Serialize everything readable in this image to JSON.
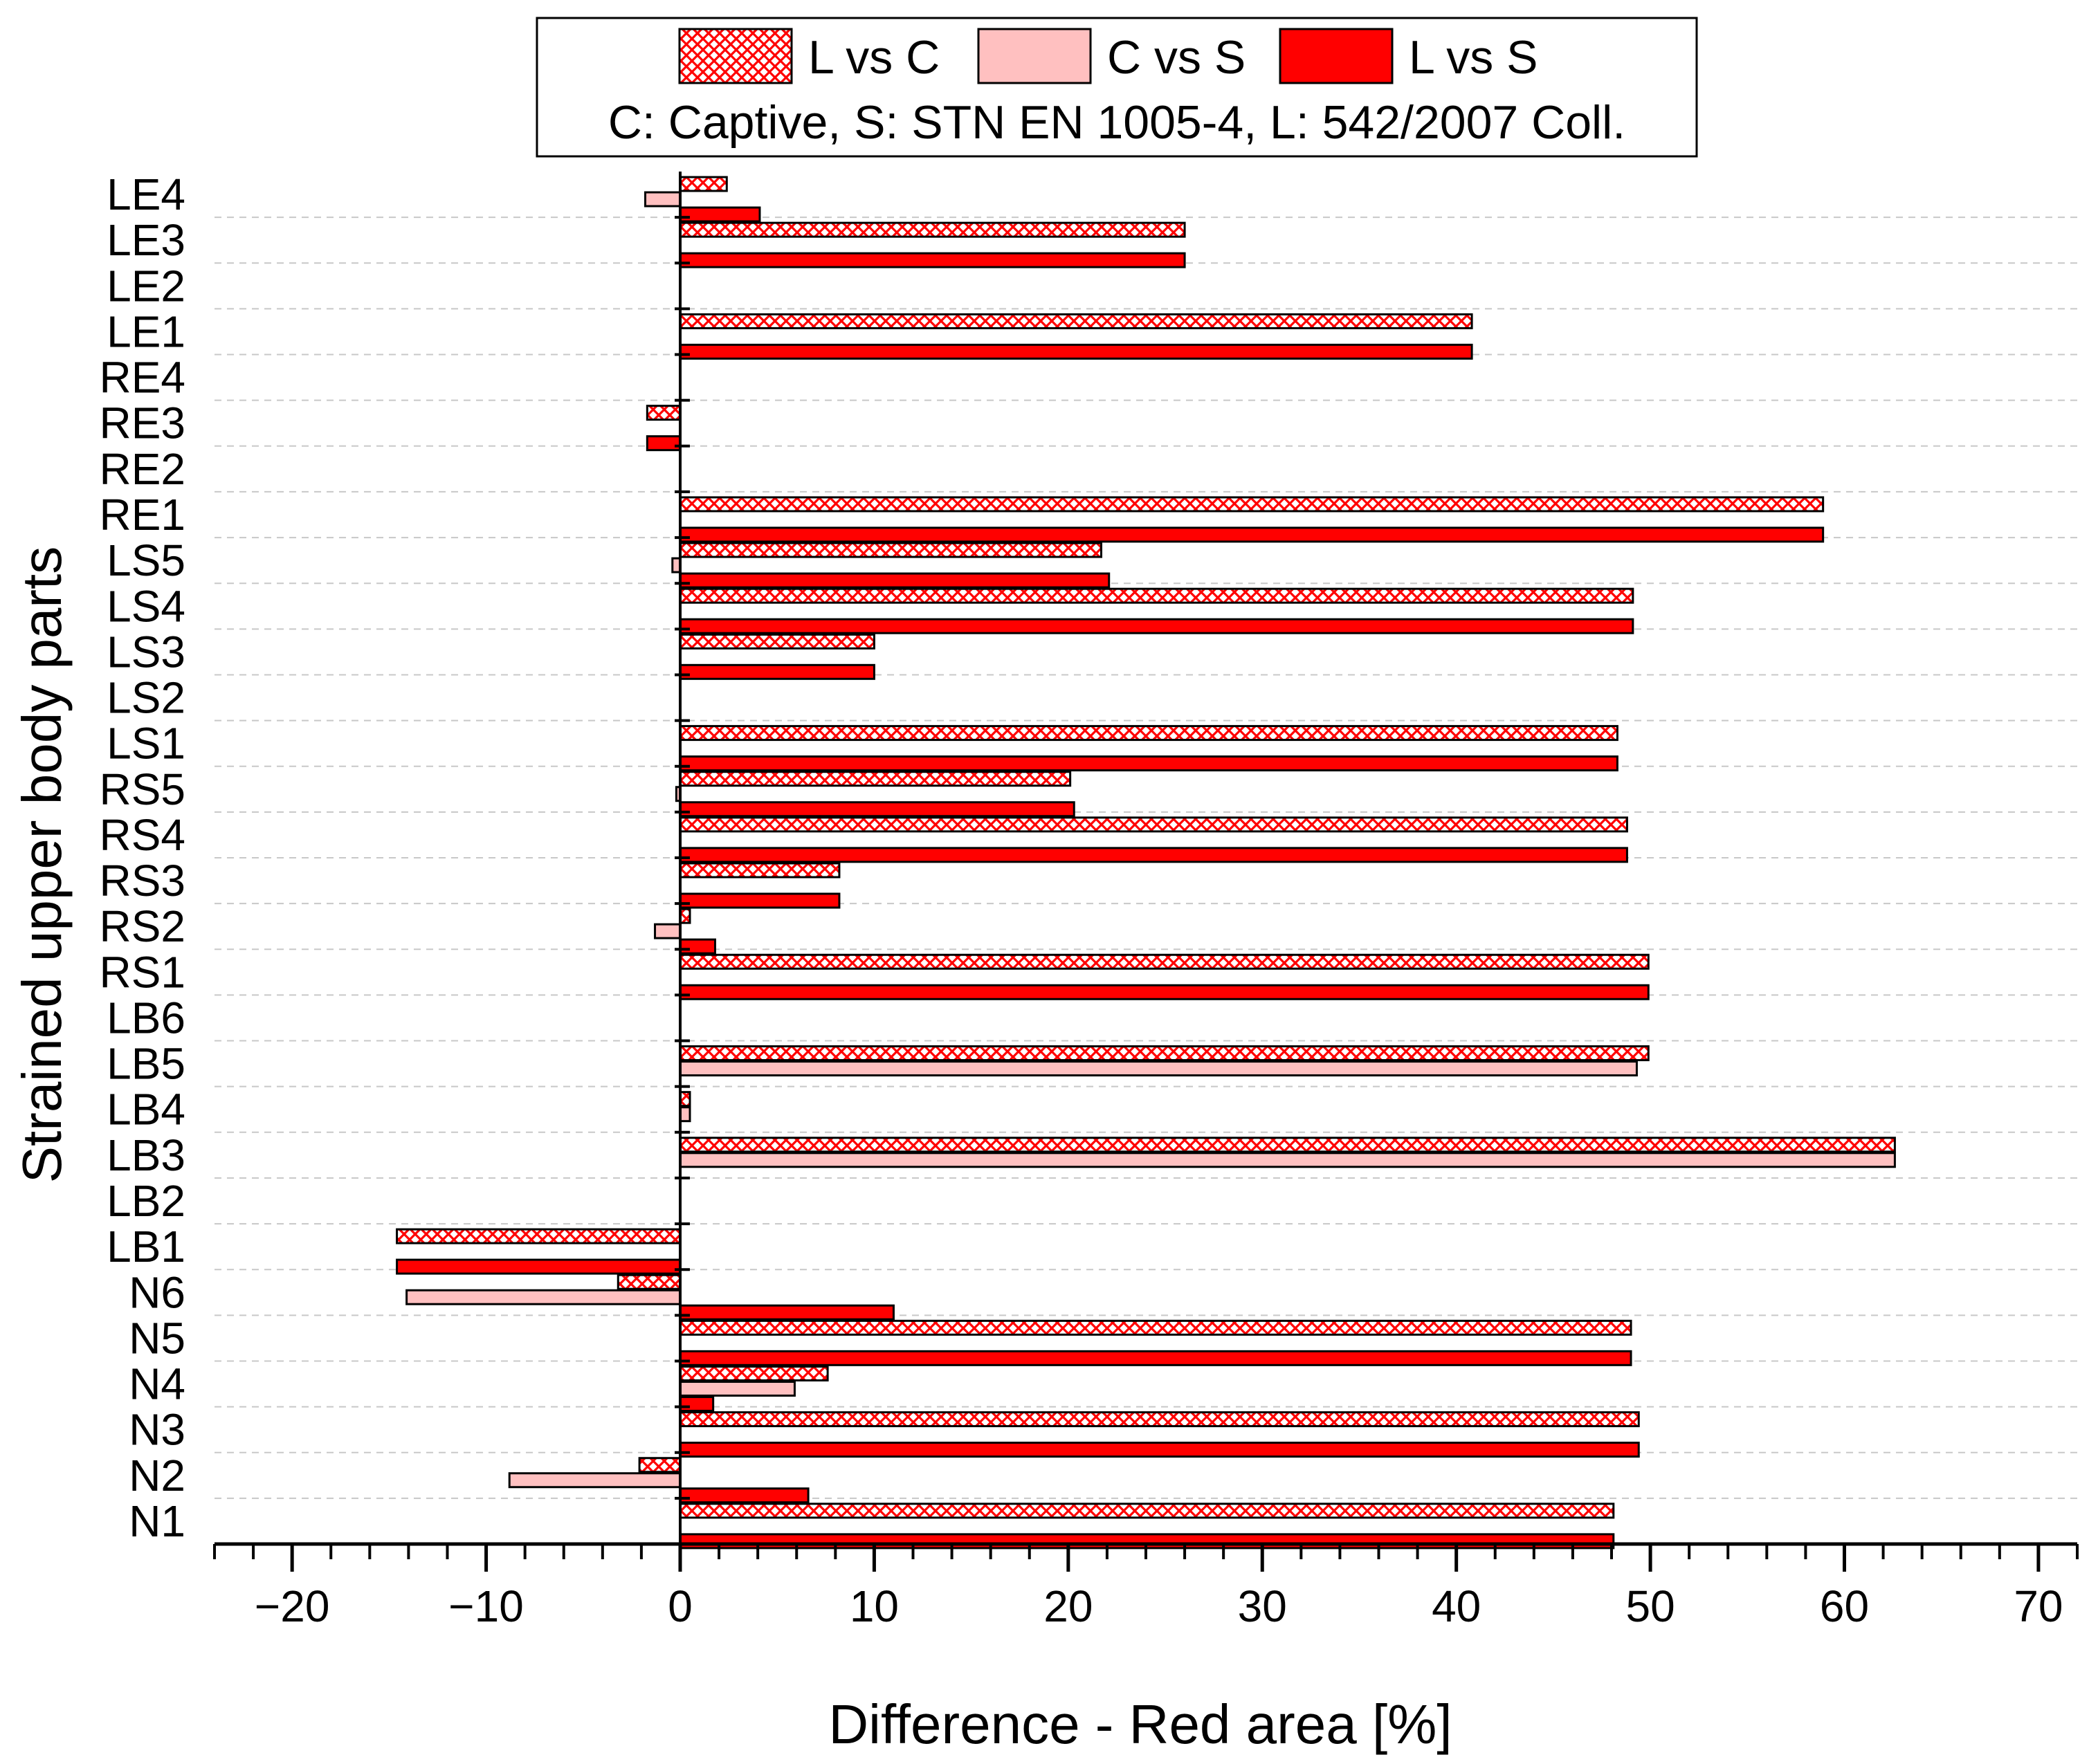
{
  "chart_data": {
    "type": "bar",
    "orientation": "horizontal",
    "ylabel": "Strained upper body parts",
    "xlabel": "Difference - Red area [%]",
    "xlim": [
      -24,
      72
    ],
    "xticks": [
      -20,
      -10,
      0,
      10,
      20,
      30,
      40,
      50,
      60,
      70
    ],
    "xtick_labels": [
      "−20",
      "−10",
      "0",
      "10",
      "20",
      "30",
      "40",
      "50",
      "60",
      "70"
    ],
    "grid": "horizontal dashed separators between categories",
    "legend": {
      "placement": "top-center",
      "note": "C: Captive, S: STN EN 1005-4, L: 542/2007 Coll."
    },
    "categories": [
      "LE4",
      "LE3",
      "LE2",
      "LE1",
      "RE4",
      "RE3",
      "RE2",
      "RE1",
      "LS5",
      "LS4",
      "LS3",
      "LS2",
      "LS1",
      "RS5",
      "RS4",
      "RS3",
      "RS2",
      "RS1",
      "LB6",
      "LB5",
      "LB4",
      "LB3",
      "LB2",
      "LB1",
      "N6",
      "N5",
      "N4",
      "N3",
      "N2",
      "N1"
    ],
    "series": [
      {
        "name": "L vs C",
        "color": "#ff0000",
        "pattern": "crosshatch",
        "values": [
          2.4,
          26.0,
          0,
          40.8,
          0,
          -1.7,
          0,
          58.9,
          21.7,
          49.1,
          10.0,
          0,
          48.3,
          20.1,
          48.8,
          8.2,
          0.5,
          49.9,
          0,
          49.9,
          0.5,
          62.6,
          0,
          -14.6,
          -3.2,
          49.0,
          7.6,
          49.4,
          -2.1,
          48.1
        ]
      },
      {
        "name": "C vs S",
        "color": "#ffc0c0",
        "pattern": "solid",
        "values": [
          -1.8,
          0,
          0,
          0,
          0,
          0,
          0,
          0,
          -0.4,
          0,
          0,
          0,
          0,
          -0.2,
          0,
          0,
          -1.3,
          0,
          0,
          49.3,
          0.5,
          62.6,
          0,
          0,
          -14.1,
          0,
          5.9,
          0,
          -8.8,
          0
        ]
      },
      {
        "name": "L vs S",
        "color": "#ff0000",
        "pattern": "solid",
        "values": [
          4.1,
          26.0,
          0,
          40.8,
          0,
          -1.7,
          0,
          58.9,
          22.1,
          49.1,
          10.0,
          0,
          48.3,
          20.3,
          48.8,
          8.2,
          1.8,
          49.9,
          0,
          0,
          0,
          0,
          0,
          -14.6,
          11.0,
          49.0,
          1.7,
          49.4,
          6.6,
          48.1
        ]
      }
    ]
  }
}
